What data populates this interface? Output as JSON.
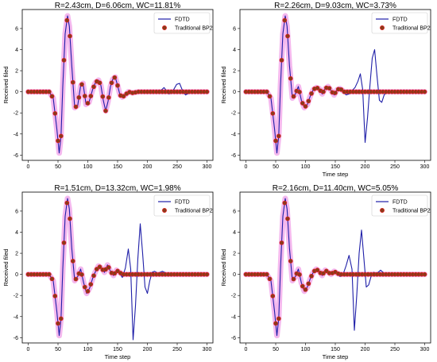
{
  "figure": {
    "panels": [
      {
        "title": "R=2.43cm, D=6.06cm, WC=11.81%",
        "xlabel": "",
        "ylabel": "Received filed"
      },
      {
        "title": "R=2.26cm, D=9.03cm, WC=3.73%",
        "xlabel": "Time step",
        "ylabel": "Received filed"
      },
      {
        "title": "R=1.51cm, D=13.32cm, WC=1.98%",
        "xlabel": "Time step",
        "ylabel": "Received filed"
      },
      {
        "title": "R=2.16cm, D=11.40cm, WC=5.05%",
        "xlabel": "Time step",
        "ylabel": "Received filed"
      }
    ],
    "legend": {
      "fdtd": "FDTD",
      "bp2": "Traditional BP2"
    }
  },
  "colors": {
    "fdtd": "#1f1fa8",
    "bp2_fill": "#8b3a1a",
    "bp2_edge": "#e02020",
    "band": "#f0a0e8"
  },
  "chart_data": [
    {
      "type": "line",
      "title": "R=2.43cm, D=6.06cm, WC=11.81%",
      "xlabel": "",
      "ylabel": "Received filed",
      "xlim": [
        -10,
        310
      ],
      "ylim": [
        -6.5,
        7.8
      ],
      "xticks": [
        0,
        50,
        100,
        150,
        200,
        250,
        300
      ],
      "yticks": [
        -6,
        -4,
        -2,
        0,
        2,
        4,
        6
      ],
      "legend_position": "top-right",
      "series": [
        {
          "name": "FDTD",
          "style": "line",
          "x": [
            0,
            35,
            42,
            48,
            52,
            55,
            58,
            62,
            66,
            69,
            73,
            78,
            83,
            88,
            92,
            97,
            102,
            108,
            113,
            118,
            122,
            126,
            130,
            134,
            138,
            142,
            146,
            150,
            154,
            158,
            163,
            168,
            175,
            185,
            195,
            205,
            212,
            218,
            224,
            228,
            232,
            236,
            240,
            244,
            249,
            254,
            259,
            264,
            270,
            280,
            300
          ],
          "y": [
            0,
            0,
            -0.6,
            -3.5,
            -5.8,
            -4.2,
            0.5,
            5.5,
            7.2,
            6.2,
            2.5,
            -1.5,
            -1.3,
            0.6,
            0.8,
            -1.2,
            -1.0,
            0.2,
            0.9,
            1.1,
            0.6,
            -0.8,
            -1.8,
            -0.9,
            0.5,
            1.2,
            1.4,
            0.6,
            -0.3,
            -0.5,
            -0.3,
            0.0,
            -0.1,
            0.0,
            0.0,
            0.1,
            -0.1,
            -0.1,
            0.2,
            0.4,
            0.1,
            -0.2,
            -0.1,
            0.2,
            0.7,
            0.8,
            0.1,
            -0.3,
            -0.1,
            0.0,
            0.0
          ]
        },
        {
          "name": "Traditional BP2",
          "style": "markers",
          "x": [
            0,
            35,
            42,
            48,
            52,
            55,
            58,
            62,
            66,
            69,
            73,
            78,
            83,
            88,
            92,
            97,
            102,
            108,
            113,
            118,
            122,
            126,
            130,
            134,
            138,
            142,
            146,
            150,
            154,
            158,
            163,
            168,
            175,
            185,
            195,
            205,
            215,
            225,
            235,
            245,
            255,
            265,
            280,
            300
          ],
          "y": [
            0,
            0,
            -0.6,
            -3.5,
            -5.8,
            -4.2,
            0.5,
            5.5,
            7.2,
            6.2,
            2.5,
            -1.5,
            -1.3,
            0.6,
            0.8,
            -1.2,
            -1.0,
            0.2,
            0.9,
            1.1,
            0.6,
            -0.8,
            -1.8,
            -0.9,
            0.5,
            1.2,
            1.4,
            0.6,
            -0.3,
            -0.5,
            -0.3,
            0.0,
            -0.1,
            0.0,
            0.0,
            0.0,
            0.0,
            0.0,
            0.0,
            0.0,
            0.0,
            0.0,
            0.0,
            0.0
          ]
        }
      ]
    },
    {
      "type": "line",
      "title": "R=2.26cm, D=9.03cm, WC=3.73%",
      "xlabel": "Time step",
      "ylabel": "Received filed",
      "xlim": [
        -10,
        310
      ],
      "ylim": [
        -6.5,
        7.8
      ],
      "xticks": [
        0,
        50,
        100,
        150,
        200,
        250,
        300
      ],
      "yticks": [
        -6,
        -4,
        -2,
        0,
        2,
        4,
        6
      ],
      "legend_position": "top-right",
      "series": [
        {
          "name": "FDTD",
          "style": "line",
          "x": [
            0,
            35,
            42,
            48,
            52,
            55,
            58,
            62,
            66,
            69,
            73,
            78,
            83,
            88,
            93,
            98,
            103,
            108,
            113,
            118,
            123,
            128,
            133,
            138,
            143,
            148,
            153,
            158,
            163,
            168,
            173,
            178,
            183,
            188,
            192,
            196,
            200,
            204,
            208,
            212,
            216,
            220,
            224,
            228,
            232,
            238,
            245,
            255,
            270,
            300
          ],
          "y": [
            0,
            0,
            -0.6,
            -3.5,
            -5.8,
            -4.2,
            0.5,
            5.5,
            7.2,
            6.2,
            2.5,
            -0.6,
            -0.2,
            0.5,
            -0.8,
            -1.5,
            -1.2,
            -0.4,
            0.2,
            0.4,
            0.3,
            -0.2,
            0.3,
            0.5,
            0.1,
            -0.3,
            0.2,
            0.4,
            0.1,
            -0.3,
            -0.2,
            0.1,
            0.4,
            1.0,
            1.7,
            0.2,
            -4.8,
            -2.5,
            0.5,
            3.2,
            4.0,
            1.5,
            -0.8,
            -1.0,
            -0.3,
            0.1,
            0.0,
            0.0,
            0.0,
            0.0
          ]
        },
        {
          "name": "Traditional BP2",
          "style": "markers",
          "x": [
            0,
            35,
            42,
            48,
            52,
            55,
            58,
            62,
            66,
            69,
            73,
            78,
            83,
            88,
            93,
            98,
            103,
            108,
            113,
            118,
            123,
            128,
            133,
            138,
            143,
            148,
            153,
            158,
            165,
            175,
            185,
            195,
            205,
            215,
            225,
            235,
            245,
            255,
            270,
            300
          ],
          "y": [
            0,
            0,
            -0.6,
            -3.5,
            -5.8,
            -4.2,
            0.5,
            5.5,
            7.2,
            6.2,
            2.5,
            -0.6,
            -0.2,
            0.5,
            -0.8,
            -1.5,
            -1.2,
            -0.4,
            0.2,
            0.4,
            0.3,
            -0.2,
            0.3,
            0.5,
            0.1,
            -0.3,
            0.2,
            0.3,
            0.0,
            0.0,
            0.0,
            0.0,
            0.0,
            0.0,
            0.0,
            0.0,
            0.0,
            0.0,
            0.0,
            0.0
          ]
        }
      ]
    },
    {
      "type": "line",
      "title": "R=1.51cm, D=13.32cm, WC=1.98%",
      "xlabel": "Time step",
      "ylabel": "Received filed",
      "xlim": [
        -10,
        310
      ],
      "ylim": [
        -6.5,
        7.8
      ],
      "xticks": [
        0,
        50,
        100,
        150,
        200,
        250,
        300
      ],
      "yticks": [
        -6,
        -4,
        -2,
        0,
        2,
        4,
        6
      ],
      "legend_position": "top-right",
      "series": [
        {
          "name": "FDTD",
          "style": "line",
          "x": [
            0,
            35,
            42,
            48,
            52,
            55,
            58,
            62,
            66,
            69,
            73,
            78,
            83,
            88,
            93,
            98,
            103,
            108,
            113,
            118,
            123,
            128,
            133,
            138,
            143,
            148,
            153,
            158,
            163,
            168,
            172,
            176,
            180,
            184,
            188,
            192,
            196,
            200,
            204,
            208,
            212,
            218,
            225,
            232,
            240,
            250,
            270,
            300
          ],
          "y": [
            0,
            0,
            -0.6,
            -3.5,
            -5.8,
            -4.2,
            0.5,
            5.5,
            7.2,
            6.2,
            2.5,
            -0.6,
            -0.2,
            0.5,
            -0.8,
            -1.8,
            -1.3,
            -0.4,
            0.3,
            0.8,
            0.6,
            0.2,
            0.9,
            0.3,
            -0.1,
            0.4,
            0.2,
            -0.3,
            0.6,
            2.4,
            0.5,
            -6.2,
            -3.0,
            1.5,
            4.8,
            2.0,
            -1.2,
            -1.8,
            -0.6,
            0.2,
            0.3,
            0.1,
            0.3,
            0.1,
            0.0,
            0.0,
            0.0,
            0.0
          ]
        },
        {
          "name": "Traditional BP2",
          "style": "markers",
          "x": [
            0,
            35,
            42,
            48,
            52,
            55,
            58,
            62,
            66,
            69,
            73,
            78,
            83,
            88,
            93,
            98,
            103,
            108,
            113,
            118,
            123,
            128,
            133,
            138,
            143,
            148,
            153,
            158,
            165,
            175,
            185,
            195,
            205,
            215,
            225,
            235,
            245,
            255,
            270,
            300
          ],
          "y": [
            0,
            0,
            -0.6,
            -3.5,
            -5.8,
            -4.2,
            0.5,
            5.5,
            7.2,
            6.2,
            2.5,
            -0.6,
            -0.2,
            0.5,
            -0.8,
            -1.8,
            -1.3,
            -0.4,
            0.3,
            0.8,
            0.6,
            0.2,
            0.9,
            0.3,
            -0.1,
            0.4,
            0.2,
            0.0,
            0.0,
            0.0,
            0.0,
            0.0,
            0.0,
            0.0,
            0.0,
            0.0,
            0.0,
            0.0,
            0.0,
            0.0
          ]
        }
      ]
    },
    {
      "type": "line",
      "title": "R=2.16cm, D=11.40cm, WC=5.05%",
      "xlabel": "Time step",
      "ylabel": "Received filed",
      "xlim": [
        -10,
        310
      ],
      "ylim": [
        -6.5,
        7.8
      ],
      "xticks": [
        0,
        50,
        100,
        150,
        200,
        250,
        300
      ],
      "yticks": [
        -6,
        -4,
        -2,
        0,
        2,
        4,
        6
      ],
      "legend_position": "top-right",
      "series": [
        {
          "name": "FDTD",
          "style": "line",
          "x": [
            0,
            35,
            42,
            48,
            52,
            55,
            58,
            62,
            66,
            69,
            73,
            78,
            83,
            88,
            93,
            98,
            103,
            108,
            113,
            118,
            123,
            128,
            133,
            138,
            143,
            148,
            153,
            158,
            163,
            168,
            173,
            178,
            182,
            186,
            190,
            194,
            198,
            202,
            206,
            210,
            214,
            220,
            226,
            232,
            240,
            250,
            270,
            300
          ],
          "y": [
            0,
            0,
            -0.6,
            -3.5,
            -5.8,
            -4.2,
            0.5,
            5.5,
            7.2,
            6.2,
            2.5,
            -0.6,
            -0.2,
            0.5,
            -0.8,
            -1.6,
            -1.2,
            -0.4,
            0.2,
            0.5,
            0.3,
            -0.1,
            0.4,
            0.2,
            0.0,
            0.3,
            0.1,
            -0.2,
            0.0,
            0.8,
            1.8,
            0.5,
            -5.3,
            -2.0,
            2.0,
            4.2,
            1.5,
            -1.2,
            -1.0,
            -0.2,
            0.2,
            0.1,
            0.4,
            0.1,
            0.0,
            0.0,
            0.0,
            0.0
          ]
        },
        {
          "name": "Traditional BP2",
          "style": "markers",
          "x": [
            0,
            35,
            42,
            48,
            52,
            55,
            58,
            62,
            66,
            69,
            73,
            78,
            83,
            88,
            93,
            98,
            103,
            108,
            113,
            118,
            123,
            128,
            133,
            138,
            143,
            148,
            153,
            158,
            165,
            175,
            185,
            195,
            205,
            215,
            225,
            235,
            245,
            255,
            270,
            300
          ],
          "y": [
            0,
            0,
            -0.6,
            -3.5,
            -5.8,
            -4.2,
            0.5,
            5.5,
            7.2,
            6.2,
            2.5,
            -0.6,
            -0.2,
            0.5,
            -0.8,
            -1.6,
            -1.2,
            -0.4,
            0.2,
            0.5,
            0.3,
            -0.1,
            0.4,
            0.2,
            0.0,
            0.3,
            0.1,
            0.0,
            0.0,
            0.0,
            0.0,
            0.0,
            0.0,
            0.0,
            0.0,
            0.0,
            0.0,
            0.0,
            0.0,
            0.0
          ]
        }
      ]
    }
  ]
}
